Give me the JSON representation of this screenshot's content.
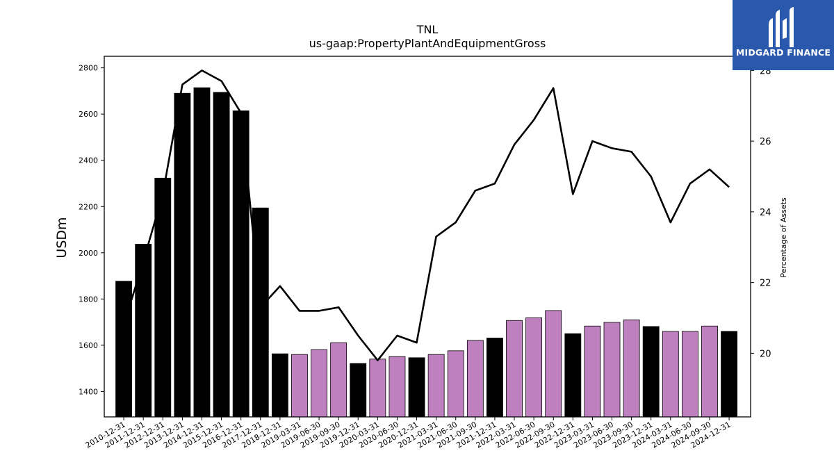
{
  "chart_data": {
    "type": "bar",
    "title": "TNL",
    "subtitle": "us-gaap:PropertyPlantAndEquipmentGross",
    "ylabel": "USDm",
    "y2label": "Percentage of Assets",
    "categories": [
      "2010-12-31",
      "2011-12-31",
      "2012-12-31",
      "2013-12-31",
      "2014-12-31",
      "2015-12-31",
      "2016-12-31",
      "2017-12-31",
      "2018-12-31",
      "2019-03-31",
      "2019-06-30",
      "2019-09-30",
      "2019-12-31",
      "2020-03-31",
      "2020-06-30",
      "2020-12-31",
      "2021-03-31",
      "2021-06-30",
      "2021-09-30",
      "2021-12-31",
      "2022-03-31",
      "2022-06-30",
      "2022-09-30",
      "2022-12-31",
      "2023-03-31",
      "2023-06-30",
      "2023-09-30",
      "2023-12-31",
      "2024-03-31",
      "2024-06-30",
      "2024-09-30",
      "2024-12-31"
    ],
    "series": [
      {
        "type": "bar",
        "axis": "left",
        "values": [
          1877,
          2037,
          2323,
          2690,
          2714,
          2694,
          2614,
          2194,
          1563,
          1560,
          1581,
          1611,
          1521,
          1540,
          1551,
          1546,
          1560,
          1576,
          1621,
          1631,
          1707,
          1719,
          1750,
          1650,
          1683,
          1699,
          1710,
          1681,
          1660,
          1660,
          1683,
          1660
        ],
        "colors": [
          "#000000",
          "#000000",
          "#000000",
          "#000000",
          "#000000",
          "#000000",
          "#000000",
          "#000000",
          "#000000",
          "#bf80bf",
          "#bf80bf",
          "#bf80bf",
          "#000000",
          "#bf80bf",
          "#bf80bf",
          "#000000",
          "#bf80bf",
          "#bf80bf",
          "#bf80bf",
          "#000000",
          "#bf80bf",
          "#bf80bf",
          "#bf80bf",
          "#000000",
          "#bf80bf",
          "#bf80bf",
          "#bf80bf",
          "#000000",
          "#bf80bf",
          "#bf80bf",
          "#bf80bf",
          "#000000"
        ]
      },
      {
        "type": "line",
        "axis": "right",
        "color": "#000000",
        "values": [
          20.8,
          22.6,
          24.5,
          27.6,
          28.0,
          27.7,
          26.8,
          21.3,
          21.9,
          21.2,
          21.2,
          21.3,
          20.5,
          19.8,
          20.5,
          20.3,
          23.3,
          23.7,
          24.6,
          24.8,
          25.9,
          26.6,
          27.5,
          24.5,
          26.0,
          25.8,
          25.7,
          25.0,
          23.7,
          24.8,
          25.2,
          24.7
        ]
      }
    ],
    "ylim": [
      1290,
      2850
    ],
    "y2lim": [
      18.2,
      28.4
    ],
    "yticks": [
      1400,
      1600,
      1800,
      2000,
      2200,
      2400,
      2600,
      2800
    ],
    "y2ticks": [
      20,
      22,
      24,
      26,
      28
    ],
    "grid": false,
    "legend": "none"
  },
  "logo": {
    "text": "MIDGARD FINANCE",
    "background": "#2a58ad"
  }
}
